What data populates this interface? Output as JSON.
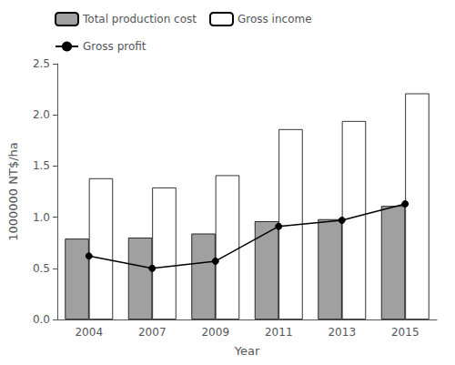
{
  "chart_data": {
    "type": "bar",
    "xlabel": "Year",
    "ylabel": "1000000 NT$/ha",
    "categories": [
      "2004",
      "2007",
      "2009",
      "2011",
      "2013",
      "2015"
    ],
    "series": [
      {
        "name": "Total production cost",
        "type": "bar",
        "color": "#a0a0a0",
        "values": [
          0.79,
          0.8,
          0.84,
          0.96,
          0.98,
          1.11
        ]
      },
      {
        "name": "Gross income",
        "type": "bar",
        "color": "#ffffff",
        "values": [
          1.38,
          1.29,
          1.41,
          1.86,
          1.94,
          2.21
        ]
      },
      {
        "name": "Gross profit",
        "type": "line",
        "color": "#000000",
        "marker": "circle",
        "values": [
          0.62,
          0.5,
          0.57,
          0.91,
          0.97,
          1.13
        ]
      }
    ],
    "ylim": [
      0.0,
      2.5
    ],
    "yticks": [
      {
        "value": 0.0,
        "label": "0.0"
      },
      0.5,
      {
        "value": 1.0,
        "label": "1.0"
      },
      1.5,
      {
        "value": 2.0,
        "label": "2.0"
      },
      2.5
    ],
    "grid": false,
    "legend": "upper left"
  }
}
